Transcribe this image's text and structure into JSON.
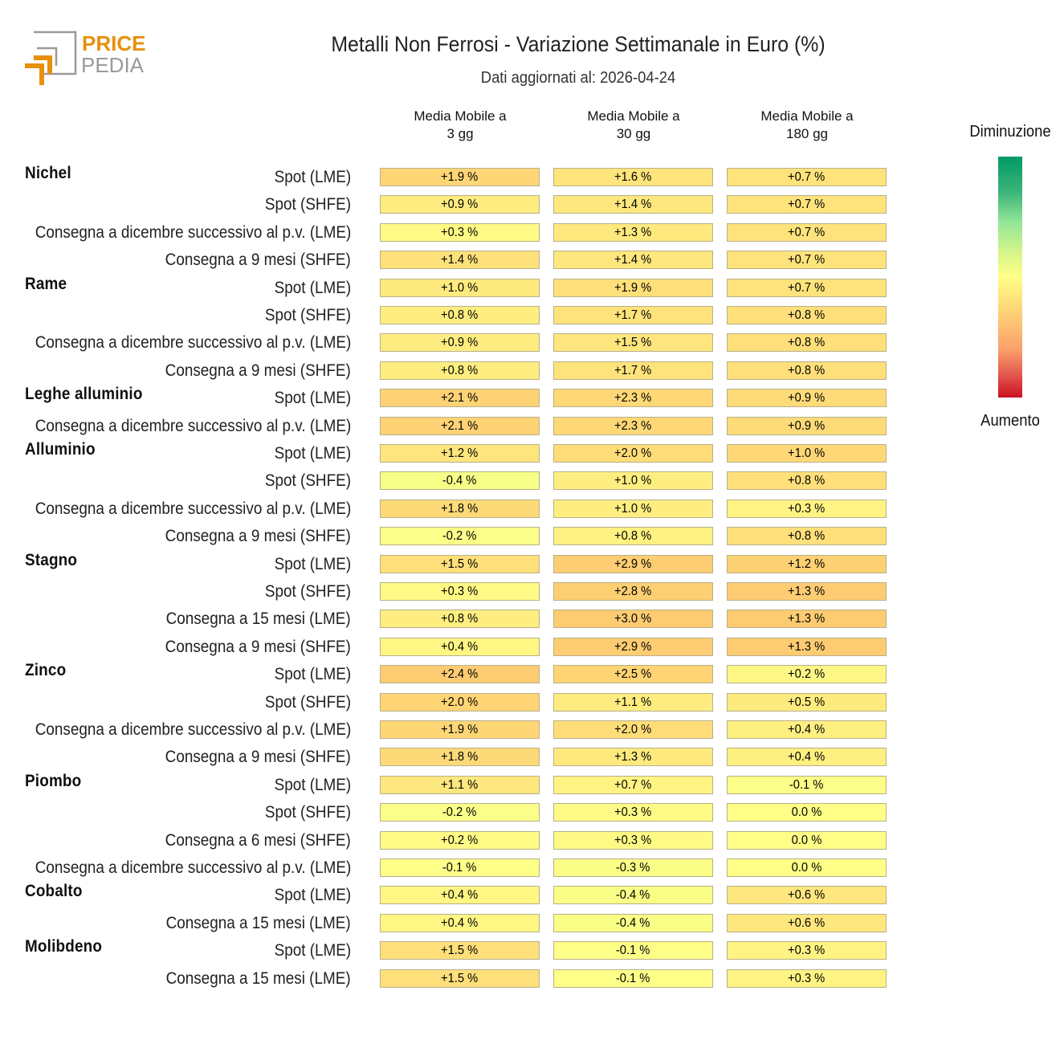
{
  "logo": {
    "word1": "PRICE",
    "word2": "PEDIA"
  },
  "colorbar": {
    "top_label": "Diminuzione",
    "bottom_label": "Aumento"
  },
  "chart_data": {
    "type": "heatmap",
    "title": "Metalli Non Ferrosi - Variazione Settimanale in Euro (%)",
    "subtitle": "Dati aggiornati al: 2026-04-24",
    "columns": [
      {
        "line1": "Media Mobile a",
        "line2": "3 gg"
      },
      {
        "line1": "Media Mobile a",
        "line2": "30 gg"
      },
      {
        "line1": "Media Mobile a",
        "line2": "180 gg"
      }
    ],
    "unit": "%",
    "rows": [
      {
        "metal": "Nichel",
        "label": "Spot (LME)",
        "values": [
          1.9,
          1.6,
          0.7
        ]
      },
      {
        "metal": "",
        "label": "Spot (SHFE)",
        "values": [
          0.9,
          1.4,
          0.7
        ]
      },
      {
        "metal": "",
        "label": "Consegna a dicembre successivo al p.v. (LME)",
        "values": [
          0.3,
          1.3,
          0.7
        ]
      },
      {
        "metal": "",
        "label": "Consegna a 9 mesi (SHFE)",
        "values": [
          1.4,
          1.4,
          0.7
        ]
      },
      {
        "metal": "Rame",
        "label": "Spot (LME)",
        "values": [
          1.0,
          1.9,
          0.7
        ]
      },
      {
        "metal": "",
        "label": "Spot (SHFE)",
        "values": [
          0.8,
          1.7,
          0.8
        ]
      },
      {
        "metal": "",
        "label": "Consegna a dicembre successivo al p.v. (LME)",
        "values": [
          0.9,
          1.5,
          0.8
        ]
      },
      {
        "metal": "",
        "label": "Consegna a 9 mesi (SHFE)",
        "values": [
          0.8,
          1.7,
          0.8
        ]
      },
      {
        "metal": "Leghe alluminio",
        "label": "Spot (LME)",
        "values": [
          2.1,
          2.3,
          0.9
        ]
      },
      {
        "metal": "",
        "label": "Consegna a dicembre successivo al p.v. (LME)",
        "values": [
          2.1,
          2.3,
          0.9
        ]
      },
      {
        "metal": "Alluminio",
        "label": "Spot (LME)",
        "values": [
          1.2,
          2.0,
          1.0
        ]
      },
      {
        "metal": "",
        "label": "Spot (SHFE)",
        "values": [
          -0.4,
          1.0,
          0.8
        ]
      },
      {
        "metal": "",
        "label": "Consegna a dicembre successivo al p.v. (LME)",
        "values": [
          1.8,
          1.0,
          0.3
        ]
      },
      {
        "metal": "",
        "label": "Consegna a 9 mesi (SHFE)",
        "values": [
          -0.2,
          0.8,
          0.8
        ]
      },
      {
        "metal": "Stagno",
        "label": "Spot (LME)",
        "values": [
          1.5,
          2.9,
          1.2
        ]
      },
      {
        "metal": "",
        "label": "Spot (SHFE)",
        "values": [
          0.3,
          2.8,
          1.3
        ]
      },
      {
        "metal": "",
        "label": "Consegna a 15 mesi (LME)",
        "values": [
          0.8,
          3.0,
          1.3
        ]
      },
      {
        "metal": "",
        "label": "Consegna a 9 mesi (SHFE)",
        "values": [
          0.4,
          2.9,
          1.3
        ]
      },
      {
        "metal": "Zinco",
        "label": "Spot (LME)",
        "values": [
          2.4,
          2.5,
          0.2
        ]
      },
      {
        "metal": "",
        "label": "Spot (SHFE)",
        "values": [
          2.0,
          1.1,
          0.5
        ]
      },
      {
        "metal": "",
        "label": "Consegna a dicembre successivo al p.v. (LME)",
        "values": [
          1.9,
          2.0,
          0.4
        ]
      },
      {
        "metal": "",
        "label": "Consegna a 9 mesi (SHFE)",
        "values": [
          1.8,
          1.3,
          0.4
        ]
      },
      {
        "metal": "Piombo",
        "label": "Spot (LME)",
        "values": [
          1.1,
          0.7,
          -0.1
        ]
      },
      {
        "metal": "",
        "label": "Spot (SHFE)",
        "values": [
          -0.2,
          0.3,
          0.0
        ]
      },
      {
        "metal": "",
        "label": "Consegna a 6 mesi (SHFE)",
        "values": [
          0.2,
          0.3,
          0.0
        ]
      },
      {
        "metal": "",
        "label": "Consegna a dicembre successivo al p.v. (LME)",
        "values": [
          -0.1,
          -0.3,
          0.0
        ]
      },
      {
        "metal": "Cobalto",
        "label": "Spot (LME)",
        "values": [
          0.4,
          -0.4,
          0.6
        ]
      },
      {
        "metal": "",
        "label": "Consegna a 15 mesi (LME)",
        "values": [
          0.4,
          -0.4,
          0.6
        ]
      },
      {
        "metal": "Molibdeno",
        "label": "Spot (LME)",
        "values": [
          1.5,
          -0.1,
          0.3
        ]
      },
      {
        "metal": "",
        "label": "Consegna a 15 mesi (LME)",
        "values": [
          1.5,
          -0.1,
          0.3
        ]
      }
    ]
  }
}
